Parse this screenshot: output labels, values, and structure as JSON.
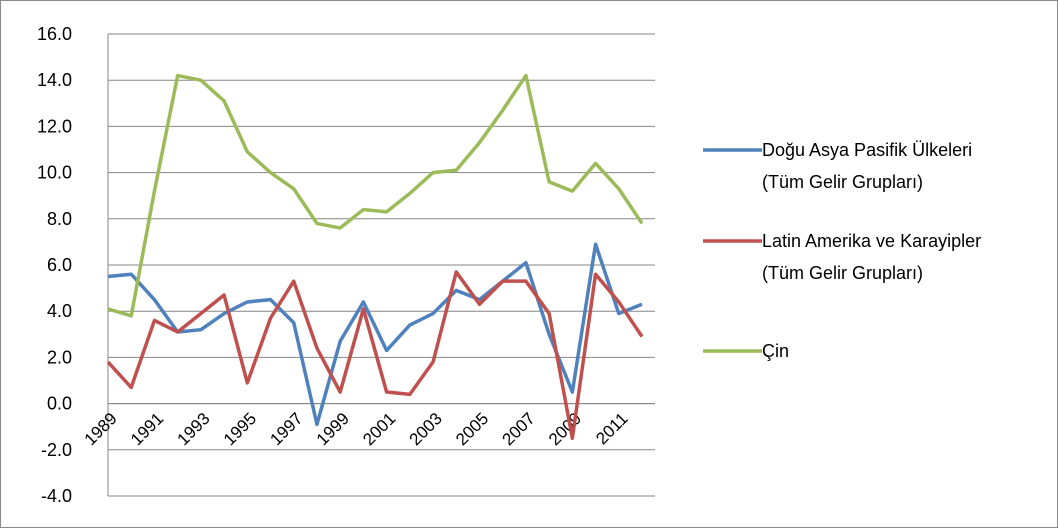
{
  "chart_data": {
    "type": "line",
    "categories": [
      "1989",
      null,
      "1991",
      null,
      "1993",
      null,
      "1995",
      null,
      "1997",
      null,
      "1999",
      null,
      "2001",
      null,
      "2003",
      null,
      "2005",
      null,
      "2007",
      null,
      "2009",
      null,
      "2011",
      null
    ],
    "series": [
      {
        "name": "Doğu Asya Pasifik Ülkeleri (Tüm Gelir Grupları)",
        "color": "#4f81bd",
        "values": [
          5.5,
          5.6,
          4.5,
          3.1,
          3.2,
          3.9,
          4.4,
          4.5,
          3.5,
          -0.9,
          2.7,
          4.4,
          2.3,
          3.4,
          3.9,
          4.9,
          4.5,
          5.3,
          6.1,
          3.0,
          0.5,
          6.9,
          3.9,
          4.3
        ]
      },
      {
        "name": "Latin Amerika ve Karayipler (Tüm Gelir Grupları)",
        "color": "#c0504d",
        "values": [
          1.8,
          0.7,
          3.6,
          3.1,
          3.9,
          4.7,
          0.9,
          3.7,
          5.3,
          2.4,
          0.5,
          4.1,
          0.5,
          0.4,
          1.8,
          5.7,
          4.3,
          5.3,
          5.3,
          3.9,
          -1.5,
          5.6,
          4.4,
          2.9
        ]
      },
      {
        "name": "Çin",
        "color": "#9bbb59",
        "values": [
          4.1,
          3.8,
          9.2,
          14.2,
          14.0,
          13.1,
          10.9,
          10.0,
          9.3,
          7.8,
          7.6,
          8.4,
          8.3,
          9.1,
          10.0,
          10.1,
          11.3,
          12.7,
          14.2,
          9.6,
          9.2,
          10.4,
          9.3,
          7.8
        ]
      }
    ],
    "ylim": [
      -4,
      16
    ],
    "yticks": [
      {
        "value": -4,
        "label": "-4.0"
      },
      {
        "value": -2,
        "label": "-2.0"
      },
      {
        "value": 0,
        "label": "0.0"
      },
      {
        "value": 2,
        "label": "2.0"
      },
      {
        "value": 4,
        "label": "4.0"
      },
      {
        "value": 6,
        "label": "6.0"
      },
      {
        "value": 8,
        "label": "8.0"
      },
      {
        "value": 10,
        "label": "10.0"
      },
      {
        "value": 12,
        "label": "12.0"
      },
      {
        "value": 14,
        "label": "14.0"
      },
      {
        "value": 16,
        "label": "16.0"
      }
    ],
    "grid": true,
    "legend": "right"
  }
}
